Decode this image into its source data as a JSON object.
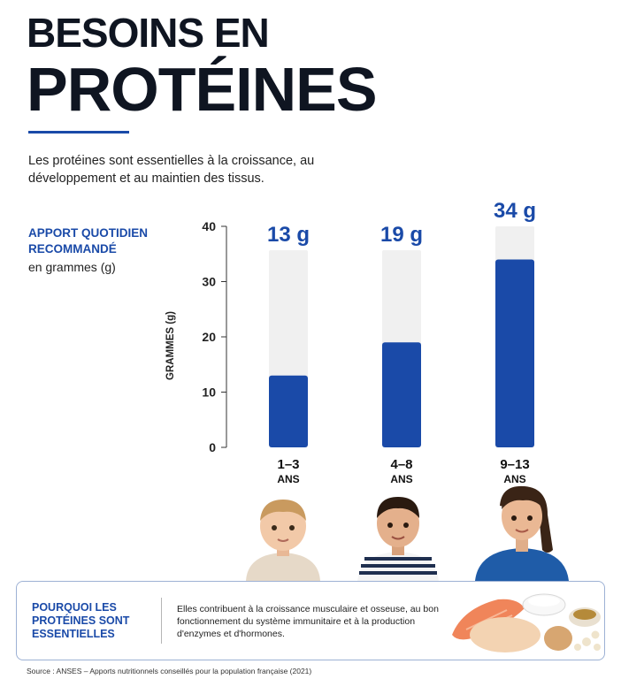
{
  "header": {
    "title_line1": "BESOINS EN",
    "title_line2": "PROTÉINES",
    "intro": "Les protéines sont essentielles à la croissance, au développement et au maintien des tissus."
  },
  "sidebar": {
    "title": "APPORT QUOTIDIEN RECOMMANDÉ",
    "unit_text": "en grammes (g)"
  },
  "chart_data": {
    "type": "bar",
    "categories": [
      {
        "line1": "1–3",
        "line2": "ANS"
      },
      {
        "line1": "4–8",
        "line2": "ANS"
      },
      {
        "line1": "9–13",
        "line2": "ANS"
      }
    ],
    "values": [
      13,
      19,
      34
    ],
    "data_labels": [
      "13 g",
      "19 g",
      "34 g"
    ],
    "ylabel": "GRAMMES (g)",
    "ylim": [
      0,
      40
    ],
    "yticks": [
      0,
      10,
      20,
      30,
      40
    ],
    "grid": false,
    "legend": "none",
    "colors": {
      "bar": "#1a4aa8",
      "track": "#f0f0f0",
      "label": "#1a4aa8",
      "axis": "#333333"
    }
  },
  "info": {
    "heading": "POURQUOI LES PROTÉINES SONT ESSENTIELLES",
    "text": "Elles contribuent à la croissance musculaire et osseuse, au bon fonctionnement du système immunitaire et à la production d'enzymes et d'hormones."
  },
  "footer": {
    "source": "Source : ANSES – Apports nutritionnels conseillés pour la population française (2021)"
  },
  "images": {
    "kids": [
      "toddler-illustration",
      "boy-illustration",
      "girl-illustration"
    ],
    "food": "protein-foods-illustration"
  }
}
